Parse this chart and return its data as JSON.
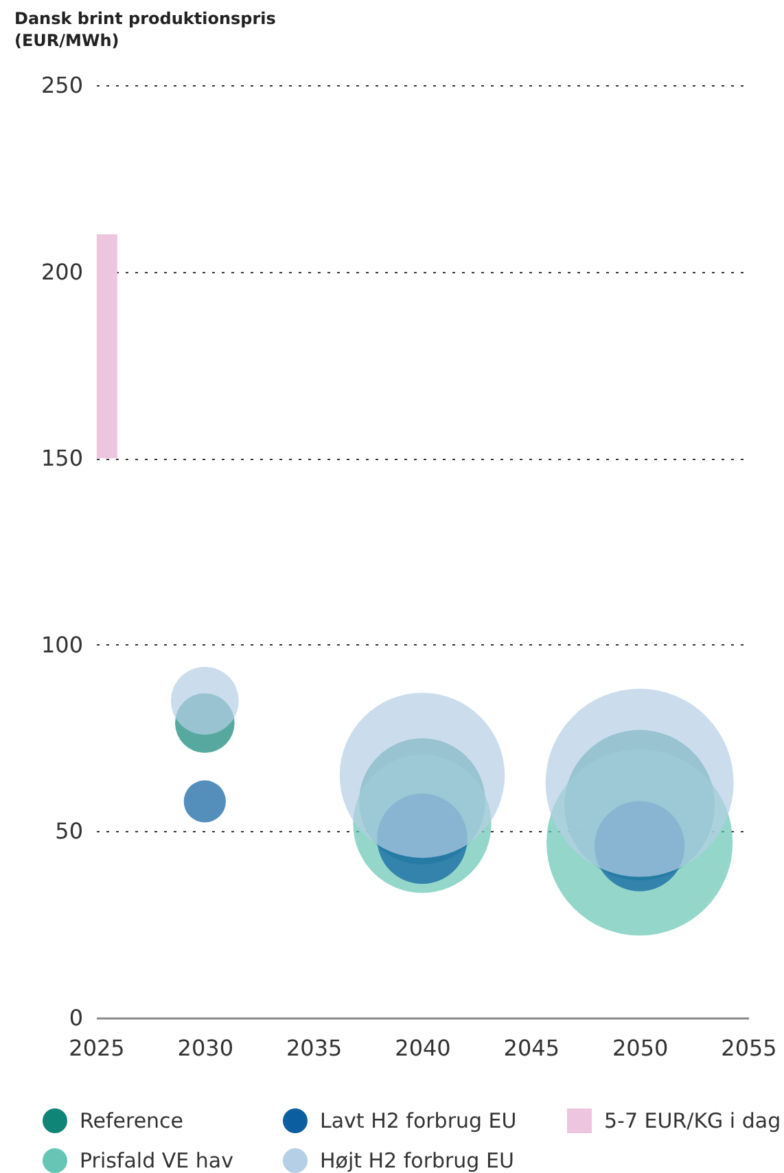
{
  "chart_data": {
    "type": "bubble",
    "ylabel": "Dansk brint produktionspris\n(EUR/MWh)",
    "x": [
      2030,
      2040,
      2050
    ],
    "series": [
      {
        "name": "Reference",
        "color": "#0f8578",
        "values": [
          79,
          58,
          57
        ],
        "sizes": [
          0.1,
          0.45,
          0.64
        ]
      },
      {
        "name": "Prisfald VE hav",
        "color": "#66c5b4",
        "values": [
          null,
          52,
          47
        ],
        "sizes": [
          null,
          0.54,
          0.98
        ]
      },
      {
        "name": "Lavt H2 forbrug EU",
        "color": "#0b5fa0",
        "values": [
          58,
          48,
          46
        ],
        "sizes": [
          0.05,
          0.23,
          0.23
        ]
      },
      {
        "name": "Højt H2 forbrug EU",
        "color": "#b5cfe6",
        "values": [
          85,
          65,
          63
        ],
        "sizes": [
          0.13,
          0.77,
          1
        ]
      },
      {
        "name": "5-7 EUR/KG i dag",
        "type": "bar",
        "color": "#eec5df",
        "x": [
          2025.5
        ],
        "base": [
          150
        ],
        "values": [
          60
        ]
      }
    ],
    "xlim": [
      2025,
      2055
    ],
    "xticks": [
      2025,
      2030,
      2035,
      2040,
      2045,
      2050,
      2055
    ],
    "ylim": [
      0,
      250
    ],
    "yticks": [
      0,
      50,
      100,
      150,
      200,
      250
    ],
    "grid": "y",
    "legend": "bottom",
    "marker": "circle"
  }
}
